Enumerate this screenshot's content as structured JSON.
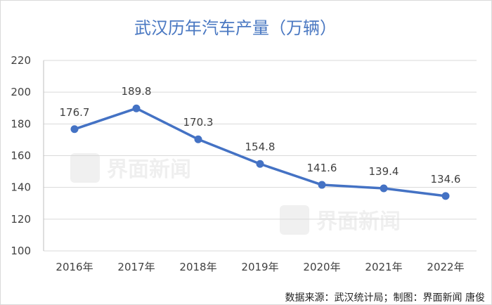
{
  "chart_data": {
    "type": "line",
    "title": "武汉历年汽车产量（万辆）",
    "categories": [
      "2016年",
      "2017年",
      "2018年",
      "2019年",
      "2020年",
      "2021年",
      "2022年"
    ],
    "values": [
      176.7,
      189.8,
      170.3,
      154.8,
      141.6,
      139.4,
      134.6
    ],
    "data_labels": [
      "176.7",
      "189.8",
      "170.3",
      "154.8",
      "141.6",
      "139.4",
      "134.6"
    ],
    "ylim": [
      100,
      220
    ],
    "yticks": [
      100,
      120,
      140,
      160,
      180,
      200,
      220
    ],
    "xlabel": "",
    "ylabel": "",
    "grid": true,
    "legend": "none",
    "colors": {
      "line": "#4472c4",
      "title": "#4a78c2",
      "grid": "#d9d9d9"
    }
  },
  "source": "数据来源：武汉统计局；制图：界面新闻 唐俊",
  "watermark": "界面新闻"
}
